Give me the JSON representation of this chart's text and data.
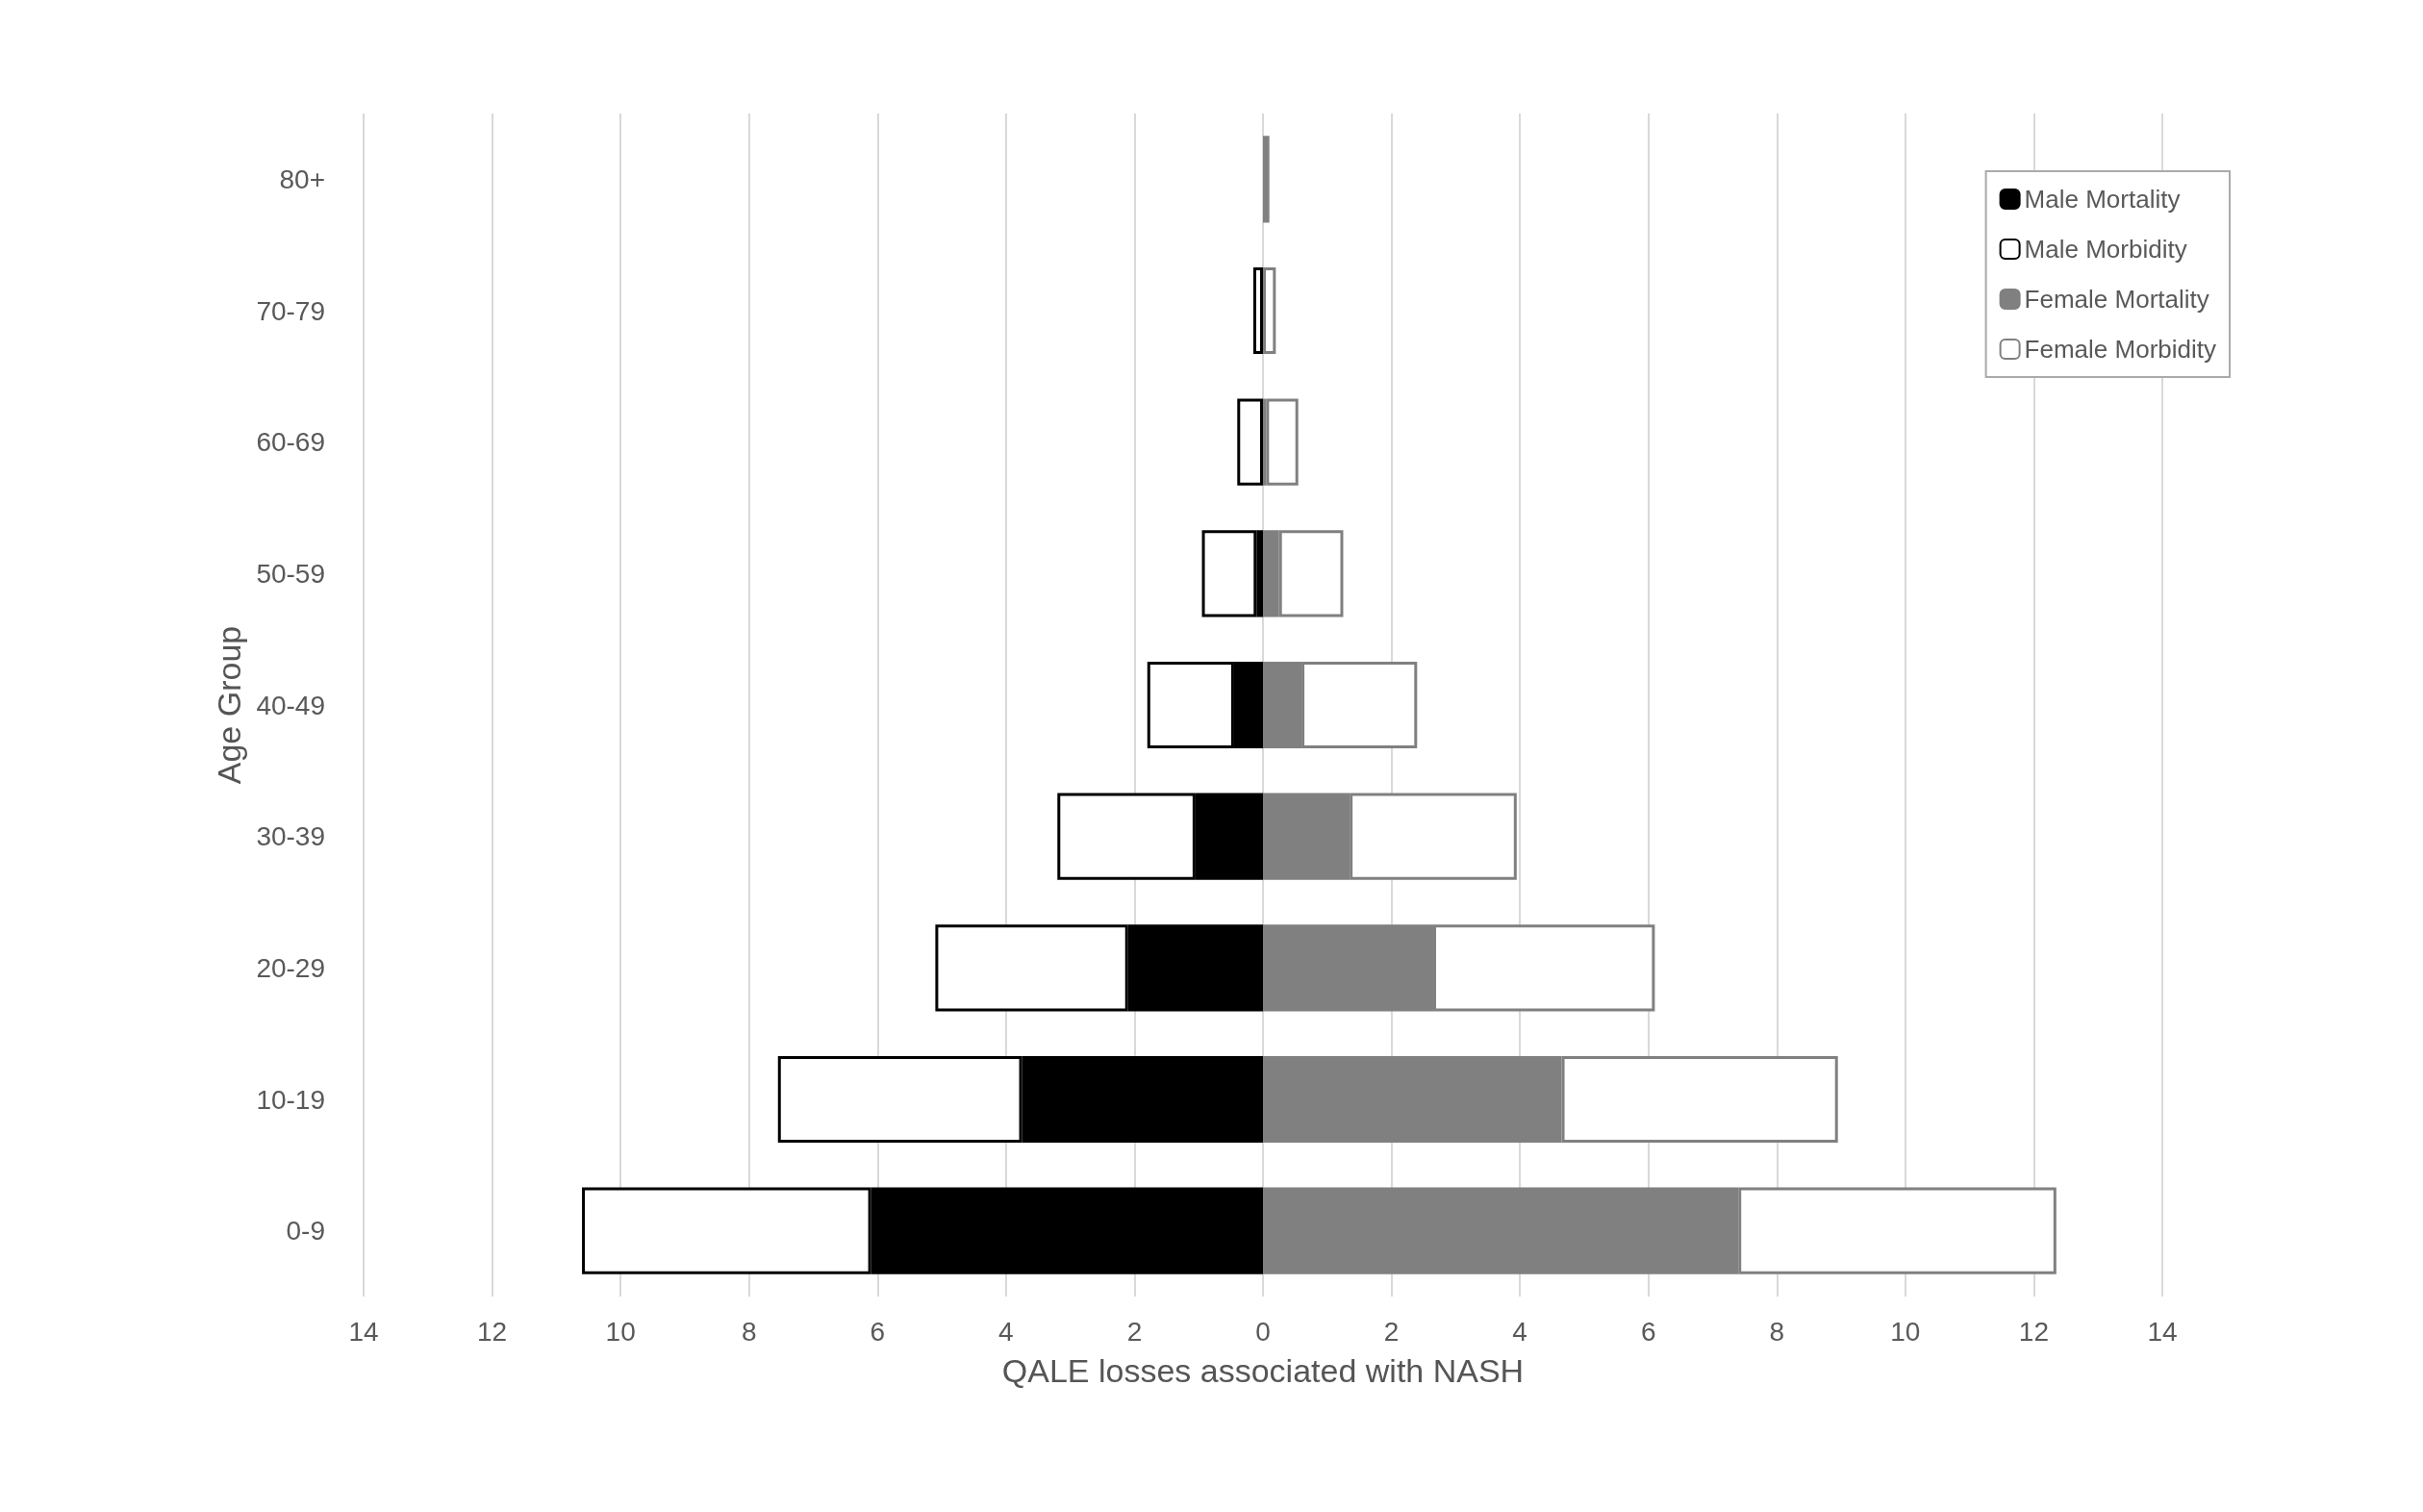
{
  "chart_data": {
    "type": "bar",
    "orientation": "horizontal",
    "stacked": true,
    "xlabel": "QALE losses associated with NASH",
    "ylabel": "Age Group",
    "categories": [
      "80+",
      "70-79",
      "60-69",
      "50-59",
      "40-49",
      "30-39",
      "20-29",
      "10-19",
      "0-9"
    ],
    "series": [
      {
        "name": "Male Mortality",
        "color": "#000000",
        "values": [
          null,
          null,
          null,
          -0.1,
          -0.45,
          -1.05,
          -2.1,
          -3.75,
          -6.1
        ]
      },
      {
        "name": "Male Morbidity",
        "color": "#ffffff",
        "values": [
          null,
          -0.15,
          -0.4,
          -0.85,
          -1.35,
          -2.15,
          -3.0,
          -3.8,
          -4.5
        ]
      },
      {
        "name": "Female Mortality",
        "color": "#808080",
        "values": [
          0.1,
          null,
          0.05,
          0.25,
          0.6,
          1.35,
          2.65,
          4.65,
          7.4
        ]
      },
      {
        "name": "Female Morbidity",
        "color": "#ffffff",
        "values": [
          null,
          0.2,
          0.5,
          1.0,
          1.8,
          2.6,
          3.45,
          4.3,
          4.95
        ]
      }
    ],
    "xlim": [
      -14,
      14
    ],
    "xticks": [
      {
        "value": -14,
        "label": "14"
      },
      {
        "value": -12,
        "label": "12"
      },
      {
        "value": -10,
        "label": "10"
      },
      {
        "value": -8,
        "label": "8"
      },
      {
        "value": -6,
        "label": "6"
      },
      {
        "value": -4,
        "label": "4"
      },
      {
        "value": -2,
        "label": "2"
      },
      0,
      2,
      4,
      6,
      8,
      10,
      12,
      14
    ],
    "grid": "x",
    "legend": "top right"
  }
}
